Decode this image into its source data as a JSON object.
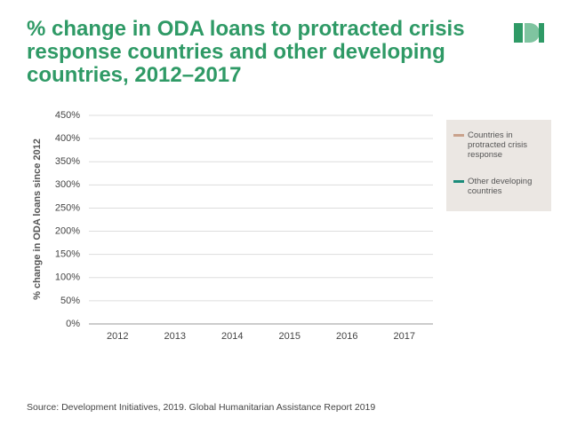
{
  "chart_data": {
    "type": "line",
    "title": "% change in ODA loans to protracted crisis response countries and other developing countries, 2012–2017",
    "y_label": "% change in ODA loans since 2012",
    "source": "Source: Development Initiatives, 2019. Global Humanitarian Assistance Report 2019",
    "categories": [
      "2012",
      "2013",
      "2014",
      "2015",
      "2016",
      "2017"
    ],
    "series": [
      {
        "name": "Countries in protracted crisis response",
        "color": "#c9a28c",
        "values": [
          null,
          null,
          null,
          null,
          null,
          null
        ]
      },
      {
        "name": "Other developing countries",
        "color": "#1b8c7a",
        "values": [
          null,
          null,
          null,
          null,
          null,
          null
        ]
      }
    ],
    "ylim": [
      0,
      450
    ],
    "yticks": [
      {
        "value": 0,
        "label": "0%"
      },
      {
        "value": 50,
        "label": "50%"
      },
      {
        "value": 100,
        "label": "100%"
      },
      {
        "value": 150,
        "label": "150%"
      },
      {
        "value": 200,
        "label": "200%"
      },
      {
        "value": 250,
        "label": "250%"
      },
      {
        "value": 300,
        "label": "300%"
      },
      {
        "value": 350,
        "label": "350%"
      },
      {
        "value": 400,
        "label": "400%"
      },
      {
        "value": 450,
        "label": "450%"
      }
    ],
    "grid": true
  }
}
